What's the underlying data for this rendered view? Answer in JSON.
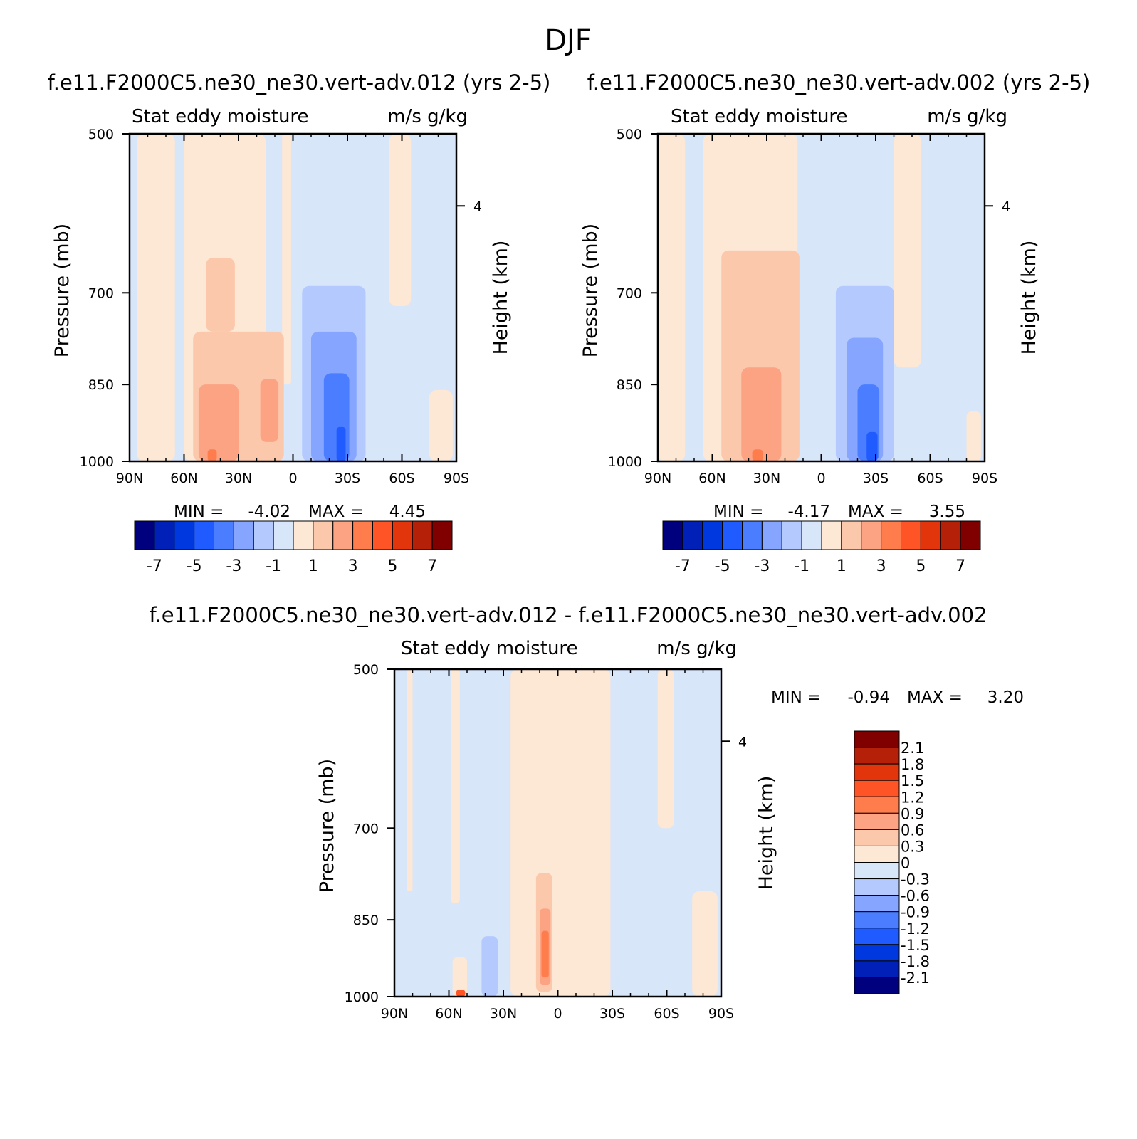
{
  "figure_title": "DJF",
  "colors": {
    "neg7": "#00007f",
    "neg6": "#0020b8",
    "neg5": "#0038e0",
    "neg4": "#1f5bff",
    "neg3": "#4a7dff",
    "neg2": "#85a5ff",
    "neg1": "#b4caff",
    "neg0": "#d8e6fa",
    "pos0": "#fde7d5",
    "pos1": "#fcc8ac",
    "pos2": "#fba383",
    "pos3": "#ff7c4c",
    "pos4": "#fe5426",
    "pos5": "#e2350c",
    "pos6": "#b52008",
    "pos7": "#800000"
  },
  "chart_data": [
    {
      "type": "contour",
      "title": "f.e11.F2000C5.ne30_ne30.vert-adv.012 (yrs 2-5)",
      "left_label": "Stat eddy moisture",
      "right_label": "m/s g/kg",
      "ylabel": "Pressure (mb)",
      "ylabel_right": "Height (km)",
      "x_ticks": [
        "90N",
        "60N",
        "30N",
        "0",
        "30S",
        "60S",
        "90S"
      ],
      "y_ticks": [
        "500",
        "700",
        "850",
        "1000"
      ],
      "right_ticks": [
        "4"
      ],
      "min_label": "MIN = ",
      "min_value": "-4.02",
      "max_label": "MAX = ",
      "max_value": "4.45",
      "colorbar": {
        "orientation": "horizontal",
        "labels": [
          "-7",
          "-5",
          "-3",
          "-1",
          "1",
          "3",
          "5",
          "7"
        ]
      },
      "regions": [
        {
          "level": "neg0",
          "lat": [
            90,
            -90
          ],
          "p": [
            500,
            1000
          ]
        },
        {
          "level": "pos0",
          "lat": [
            86,
            65
          ],
          "p": [
            500,
            1000
          ]
        },
        {
          "level": "pos0",
          "lat": [
            60,
            15
          ],
          "p": [
            500,
            1000
          ]
        },
        {
          "level": "pos0",
          "lat": [
            6,
            1
          ],
          "p": [
            500,
            850
          ]
        },
        {
          "level": "pos0",
          "lat": [
            -53,
            -65
          ],
          "p": [
            500,
            720
          ]
        },
        {
          "level": "pos1",
          "lat": [
            55,
            5
          ],
          "p": [
            760,
            1000
          ]
        },
        {
          "level": "pos1",
          "lat": [
            48,
            32
          ],
          "p": [
            650,
            760
          ]
        },
        {
          "level": "pos2",
          "lat": [
            52,
            30
          ],
          "p": [
            850,
            1000
          ]
        },
        {
          "level": "pos2",
          "lat": [
            18,
            8
          ],
          "p": [
            840,
            960
          ]
        },
        {
          "level": "pos3",
          "lat": [
            47,
            42
          ],
          "p": [
            975,
            1000
          ]
        },
        {
          "level": "neg1",
          "lat": [
            -5,
            -40
          ],
          "p": [
            690,
            1000
          ]
        },
        {
          "level": "neg2",
          "lat": [
            -10,
            -35
          ],
          "p": [
            760,
            1000
          ]
        },
        {
          "level": "neg3",
          "lat": [
            -17,
            -31
          ],
          "p": [
            830,
            1000
          ]
        },
        {
          "level": "neg4",
          "lat": [
            -24,
            -29
          ],
          "p": [
            930,
            1000
          ]
        },
        {
          "level": "pos0",
          "lat": [
            -75,
            -88
          ],
          "p": [
            860,
            1000
          ]
        }
      ]
    },
    {
      "type": "contour",
      "title": "f.e11.F2000C5.ne30_ne30.vert-adv.002 (yrs 2-5)",
      "left_label": "Stat eddy moisture",
      "right_label": "m/s g/kg",
      "ylabel": "Pressure (mb)",
      "ylabel_right": "Height (km)",
      "x_ticks": [
        "90N",
        "60N",
        "30N",
        "0",
        "30S",
        "60S",
        "90S"
      ],
      "y_ticks": [
        "500",
        "700",
        "850",
        "1000"
      ],
      "right_ticks": [
        "4"
      ],
      "min_label": "MIN = ",
      "min_value": "-4.17",
      "max_label": "MAX = ",
      "max_value": "3.55",
      "colorbar": {
        "orientation": "horizontal",
        "labels": [
          "-7",
          "-5",
          "-3",
          "-1",
          "1",
          "3",
          "5",
          "7"
        ]
      },
      "regions": [
        {
          "level": "neg0",
          "lat": [
            90,
            -90
          ],
          "p": [
            500,
            1000
          ]
        },
        {
          "level": "pos0",
          "lat": [
            90,
            75
          ],
          "p": [
            500,
            1000
          ]
        },
        {
          "level": "pos0",
          "lat": [
            65,
            13
          ],
          "p": [
            500,
            1000
          ]
        },
        {
          "level": "pos0",
          "lat": [
            -40,
            -55
          ],
          "p": [
            500,
            820
          ]
        },
        {
          "level": "pos1",
          "lat": [
            55,
            12
          ],
          "p": [
            640,
            1000
          ]
        },
        {
          "level": "pos2",
          "lat": [
            44,
            22
          ],
          "p": [
            820,
            1000
          ]
        },
        {
          "level": "pos3",
          "lat": [
            38,
            32
          ],
          "p": [
            975,
            1000
          ]
        },
        {
          "level": "neg1",
          "lat": [
            -8,
            -40
          ],
          "p": [
            690,
            1000
          ]
        },
        {
          "level": "neg2",
          "lat": [
            -14,
            -34
          ],
          "p": [
            770,
            1000
          ]
        },
        {
          "level": "neg3",
          "lat": [
            -20,
            -32
          ],
          "p": [
            850,
            1000
          ]
        },
        {
          "level": "neg4",
          "lat": [
            -25,
            -31
          ],
          "p": [
            940,
            1000
          ]
        },
        {
          "level": "pos0",
          "lat": [
            -80,
            -88
          ],
          "p": [
            900,
            1000
          ]
        }
      ]
    },
    {
      "type": "contour",
      "title": "f.e11.F2000C5.ne30_ne30.vert-adv.012 - f.e11.F2000C5.ne30_ne30.vert-adv.002",
      "left_label": "Stat eddy moisture",
      "right_label": "m/s g/kg",
      "ylabel": "Pressure (mb)",
      "ylabel_right": "Height (km)",
      "x_ticks": [
        "90N",
        "60N",
        "30N",
        "0",
        "30S",
        "60S",
        "90S"
      ],
      "y_ticks": [
        "500",
        "700",
        "850",
        "1000"
      ],
      "right_ticks": [
        "4"
      ],
      "min_label": "MIN = ",
      "min_value": "-0.94",
      "max_label": "MAX = ",
      "max_value": "3.20",
      "colorbar": {
        "orientation": "vertical",
        "labels": [
          "2.1",
          "1.8",
          "1.5",
          "1.2",
          "0.9",
          "0.6",
          "0.3",
          "0",
          "-0.3",
          "-0.6",
          "-0.9",
          "-1.2",
          "-1.5",
          "-1.8",
          "-2.1"
        ]
      },
      "regions": [
        {
          "level": "neg0",
          "lat": [
            90,
            -90
          ],
          "p": [
            500,
            1000
          ]
        },
        {
          "level": "pos0",
          "lat": [
            83,
            80
          ],
          "p": [
            500,
            800
          ]
        },
        {
          "level": "pos0",
          "lat": [
            59,
            54
          ],
          "p": [
            500,
            820
          ]
        },
        {
          "level": "pos0",
          "lat": [
            58,
            50
          ],
          "p": [
            920,
            1000
          ]
        },
        {
          "level": "pos0",
          "lat": [
            26,
            -29
          ],
          "p": [
            500,
            1000
          ]
        },
        {
          "level": "pos0",
          "lat": [
            -55,
            -64
          ],
          "p": [
            500,
            700
          ]
        },
        {
          "level": "pos0",
          "lat": [
            -74,
            -88
          ],
          "p": [
            800,
            1000
          ]
        },
        {
          "level": "neg1",
          "lat": [
            42,
            33
          ],
          "p": [
            880,
            1000
          ]
        },
        {
          "level": "pos1",
          "lat": [
            12,
            3
          ],
          "p": [
            770,
            990
          ]
        },
        {
          "level": "pos2",
          "lat": [
            10,
            4
          ],
          "p": [
            830,
            975
          ]
        },
        {
          "level": "pos3",
          "lat": [
            9,
            5
          ],
          "p": [
            870,
            960
          ]
        },
        {
          "level": "pos4",
          "lat": [
            56,
            51
          ],
          "p": [
            985,
            1000
          ]
        }
      ]
    }
  ]
}
